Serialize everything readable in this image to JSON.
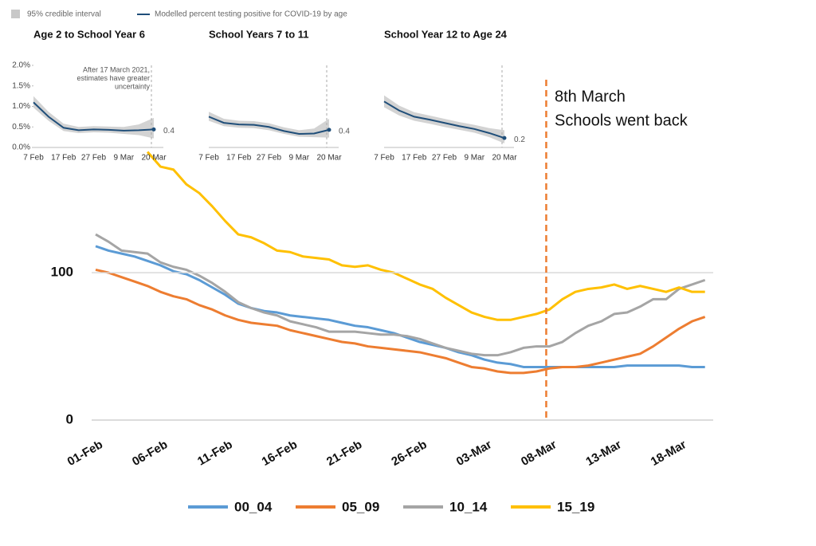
{
  "legend": {
    "band": "95% credible interval",
    "line": "Modelled percent testing positive for COVID-19 by age"
  },
  "chart_data": [
    {
      "type": "line",
      "categories": [
        "01-Feb",
        null,
        null,
        null,
        null,
        "06-Feb",
        null,
        null,
        null,
        null,
        "11-Feb",
        null,
        null,
        null,
        null,
        "16-Feb",
        null,
        null,
        null,
        null,
        "21-Feb",
        null,
        null,
        null,
        null,
        "26-Feb",
        null,
        null,
        null,
        null,
        "03-Mar",
        null,
        null,
        null,
        null,
        "08-Mar",
        null,
        null,
        null,
        null,
        "13-Mar",
        null,
        null,
        null,
        null,
        "18-Mar",
        null,
        null
      ],
      "series": [
        {
          "name": "00_04",
          "color": "#5b9bd5",
          "values": [
            118,
            115,
            113,
            111,
            108,
            105,
            101,
            99,
            95,
            90,
            85,
            79,
            76,
            74,
            73,
            71,
            70,
            69,
            68,
            66,
            64,
            63,
            61,
            59,
            56,
            53,
            51,
            49,
            46,
            44,
            41,
            39,
            38,
            36,
            36,
            36,
            36,
            36,
            36,
            36,
            36,
            37,
            37,
            37,
            37,
            37,
            36,
            36
          ]
        },
        {
          "name": "05_09",
          "color": "#ed7d31",
          "values": [
            102,
            100,
            97,
            94,
            91,
            87,
            84,
            82,
            78,
            75,
            71,
            68,
            66,
            65,
            64,
            61,
            59,
            57,
            55,
            53,
            52,
            50,
            49,
            48,
            47,
            46,
            44,
            42,
            39,
            36,
            35,
            33,
            32,
            32,
            33,
            35,
            36,
            36,
            37,
            39,
            41,
            43,
            45,
            50,
            56,
            62,
            67,
            70
          ]
        },
        {
          "name": "10_14",
          "color": "#a5a5a5",
          "values": [
            126,
            121,
            115,
            114,
            113,
            107,
            104,
            102,
            98,
            93,
            87,
            80,
            76,
            73,
            71,
            67,
            65,
            63,
            60,
            60,
            60,
            59,
            58,
            58,
            57,
            55,
            52,
            49,
            47,
            45,
            44,
            44,
            46,
            49,
            50,
            50,
            53,
            59,
            64,
            67,
            72,
            73,
            77,
            82,
            82,
            89,
            92,
            95
          ]
        },
        {
          "name": "15_19",
          "color": "#ffc000",
          "values": [
            null,
            null,
            null,
            null,
            182,
            172,
            170,
            160,
            154,
            145,
            135,
            126,
            124,
            120,
            115,
            114,
            111,
            110,
            109,
            105,
            104,
            105,
            102,
            100,
            96,
            92,
            89,
            83,
            78,
            73,
            70,
            68,
            68,
            70,
            72,
            75,
            82,
            87,
            89,
            90,
            92,
            89,
            91,
            89,
            87,
            90,
            87,
            87
          ]
        }
      ],
      "ylim": [
        0,
        185
      ],
      "yticks": [
        0,
        100
      ],
      "grid": true,
      "annotation": [
        "8th March",
        "Schools went back"
      ],
      "legend_position": "bottom"
    },
    {
      "type": "band-line",
      "title": "Age 2 to School Year 6",
      "categories": [
        "7 Feb",
        null,
        "17 Feb",
        null,
        "27 Feb",
        null,
        "9 Mar",
        null,
        "20 Mar"
      ],
      "values": [
        1.1,
        0.75,
        0.48,
        0.42,
        0.44,
        0.43,
        0.41,
        0.42,
        0.44
      ],
      "value_labels": [
        null,
        null,
        null,
        null,
        null,
        null,
        null,
        null,
        "0.4"
      ],
      "lower": [
        0.97,
        0.65,
        0.4,
        0.35,
        0.37,
        0.36,
        0.33,
        0.3,
        0.22
      ],
      "upper": [
        1.25,
        0.87,
        0.58,
        0.5,
        0.52,
        0.51,
        0.5,
        0.56,
        0.72
      ],
      "color": "#1f4e79",
      "band_color": "#d3d3d3",
      "ylim": [
        0,
        2
      ],
      "yticks": [
        {
          "value": 0,
          "label": "0.0%"
        },
        {
          "value": 0.5,
          "label": "0.5%"
        },
        {
          "value": 1,
          "label": "1.0%"
        },
        {
          "value": 1.5,
          "label": "1.5%"
        },
        {
          "value": 2,
          "label": "2.0%"
        }
      ],
      "annotation": [
        "After 17 March 2021,",
        "estimates have greater",
        "uncertainty"
      ]
    },
    {
      "type": "band-line",
      "title": "School Years 7 to 11",
      "categories": [
        "7 Feb",
        null,
        "17 Feb",
        null,
        "27 Feb",
        null,
        "9 Mar",
        null,
        "20 Mar"
      ],
      "values": [
        0.75,
        0.6,
        0.56,
        0.55,
        0.5,
        0.4,
        0.33,
        0.34,
        0.43
      ],
      "value_labels": [
        null,
        null,
        null,
        null,
        null,
        null,
        null,
        null,
        "0.4"
      ],
      "lower": [
        0.65,
        0.52,
        0.48,
        0.47,
        0.42,
        0.33,
        0.26,
        0.25,
        0.24
      ],
      "upper": [
        0.87,
        0.7,
        0.65,
        0.64,
        0.59,
        0.49,
        0.42,
        0.46,
        0.7
      ],
      "color": "#1f4e79",
      "band_color": "#d3d3d3",
      "ylim": [
        0,
        2
      ]
    },
    {
      "type": "band-line",
      "title": "School Year 12 to Age 24",
      "categories": [
        "7 Feb",
        null,
        "17 Feb",
        null,
        "27 Feb",
        null,
        "9 Mar",
        null,
        "20 Mar"
      ],
      "values": [
        1.12,
        0.9,
        0.75,
        0.68,
        0.6,
        0.52,
        0.45,
        0.35,
        0.23
      ],
      "value_labels": [
        null,
        null,
        null,
        null,
        null,
        null,
        null,
        null,
        "0.2"
      ],
      "lower": [
        0.98,
        0.78,
        0.65,
        0.58,
        0.5,
        0.43,
        0.36,
        0.25,
        0.1
      ],
      "upper": [
        1.27,
        1.02,
        0.86,
        0.78,
        0.7,
        0.62,
        0.55,
        0.47,
        0.42
      ],
      "color": "#1f4e79",
      "band_color": "#d3d3d3",
      "ylim": [
        0,
        2
      ]
    }
  ]
}
